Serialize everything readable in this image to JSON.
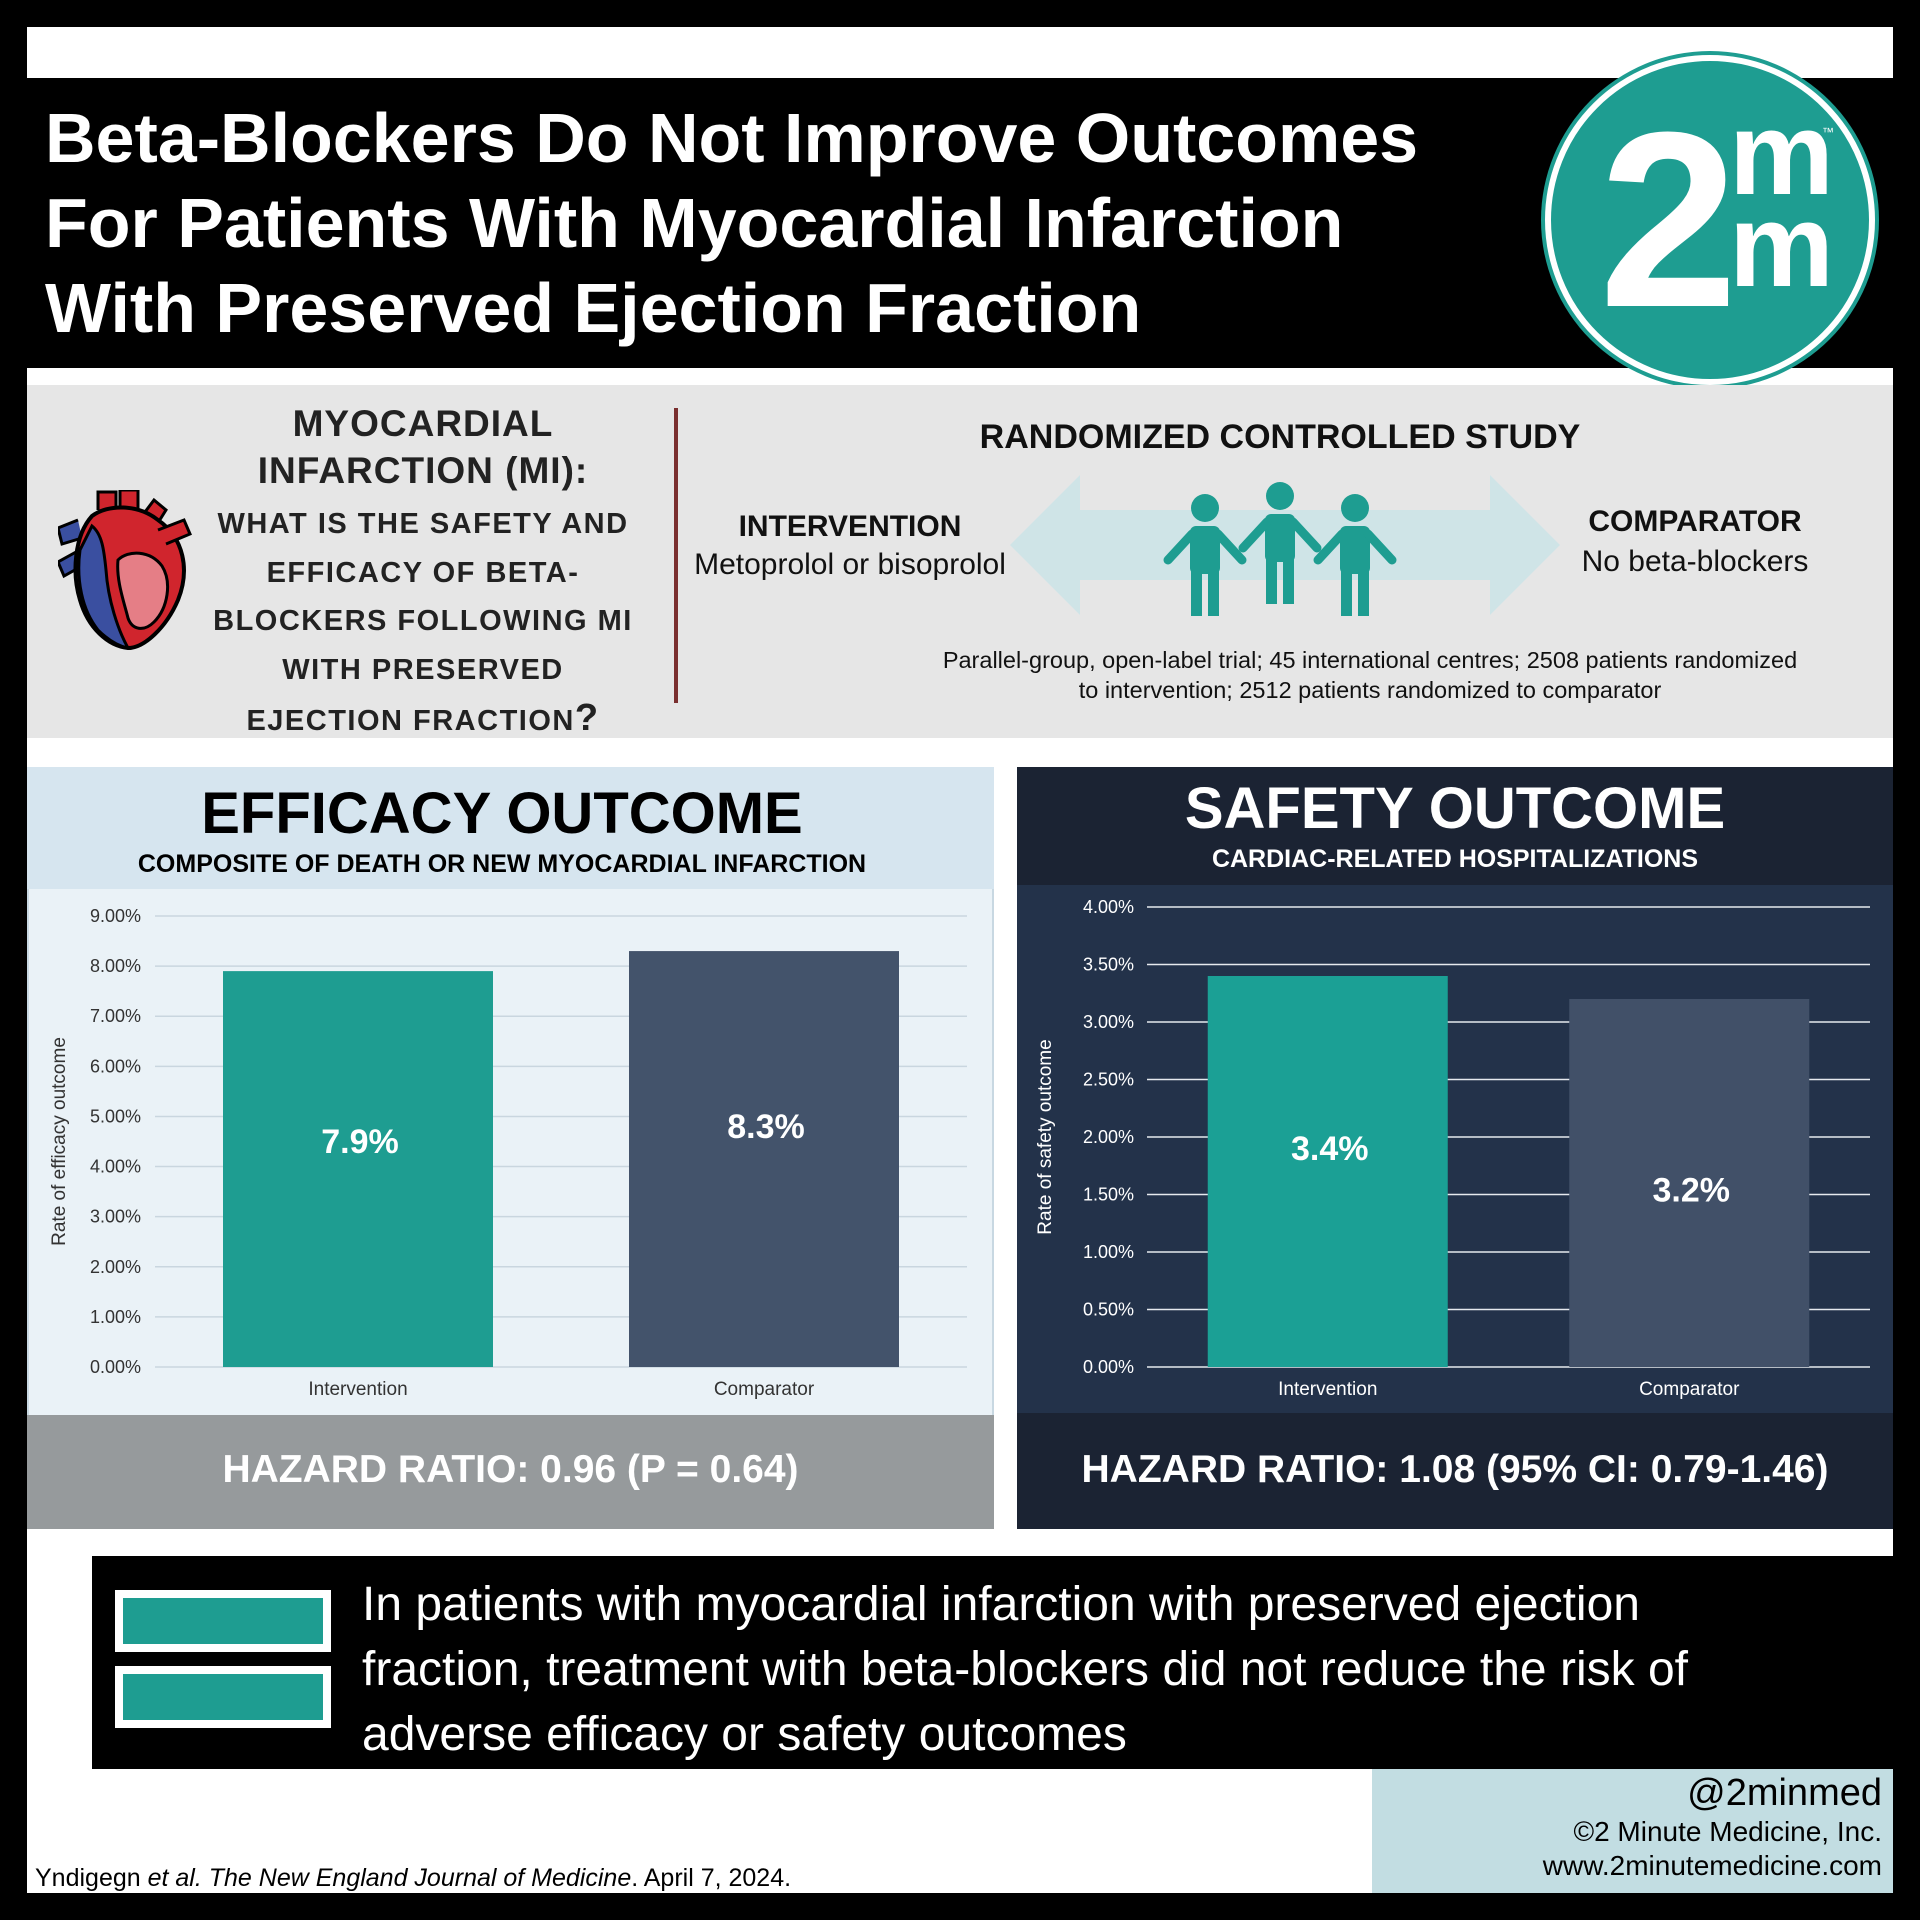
{
  "title_lines": [
    "Beta-Blockers Do Not Improve Outcomes",
    "For Patients With Myocardial Infarction",
    "With Preserved Ejection Fraction"
  ],
  "logo": {
    "digit": "2",
    "letter_top": "m",
    "letter_bottom": "m",
    "tm": "™"
  },
  "question": {
    "head": [
      "MYOCARDIAL",
      "INFARCTION (MI):"
    ],
    "body": [
      "WHAT IS THE SAFETY AND",
      "EFFICACY OF BETA-",
      "BLOCKERS FOLLOWING MI",
      "WITH PRESERVED",
      "EJECTION FRACTION",
      "?"
    ]
  },
  "study": {
    "title": "RANDOMIZED CONTROLLED STUDY",
    "intervention_label": "INTERVENTION",
    "intervention_desc": "Metoprolol or bisoprolol",
    "comparator_label": "COMPARATOR",
    "comparator_desc": "No beta-blockers",
    "description_lines": [
      "Parallel-group, open-label trial; 45 international centres; 2508 patients randomized",
      "to intervention; 2512 patients randomized to comparator"
    ]
  },
  "efficacy": {
    "title": "EFFICACY OUTCOME",
    "subtitle": "COMPOSITE OF DEATH OR NEW MYOCARDIAL INFARCTION",
    "hazard_ratio": "HAZARD RATIO: 0.96 (P = 0.64)"
  },
  "safety": {
    "title": "SAFETY OUTCOME",
    "subtitle": "CARDIAC-RELATED HOSPITALIZATIONS",
    "hazard_ratio": "HAZARD RATIO: 1.08 (95% CI: 0.79-1.46)"
  },
  "chart_data": [
    {
      "type": "bar",
      "categories": [
        "Intervention",
        "Comparator"
      ],
      "values": [
        7.9,
        8.3
      ],
      "data_labels": [
        "7.9%",
        "8.3%"
      ],
      "ylabel": "Rate of efficacy outcome",
      "ylim": [
        0,
        9
      ],
      "yticks": [
        "0.00%",
        "1.00%",
        "2.00%",
        "3.00%",
        "4.00%",
        "5.00%",
        "6.00%",
        "7.00%",
        "8.00%",
        "9.00%"
      ],
      "colors": [
        "#1e9d91",
        "#43536b"
      ],
      "grid": true
    },
    {
      "type": "bar",
      "categories": [
        "Intervention",
        "Comparator"
      ],
      "values": [
        3.4,
        3.2
      ],
      "data_labels": [
        "3.4%",
        "3.2%"
      ],
      "ylabel": "Rate of safety outcome",
      "ylim": [
        0,
        4
      ],
      "yticks": [
        "0.00%",
        "0.50%",
        "1.00%",
        "1.50%",
        "2.00%",
        "2.50%",
        "3.00%",
        "3.50%",
        "4.00%"
      ],
      "colors": [
        "#1ba095",
        "#415068"
      ],
      "grid": true
    }
  ],
  "conclusion_lines": [
    "In patients with myocardial infarction with preserved ejection",
    "fraction, treatment with beta-blockers did not reduce the risk of",
    "adverse efficacy or safety outcomes"
  ],
  "citation": {
    "authors": "Yndigegn ",
    "etal": "et al.",
    "journal": " The New England Journal of Medicine",
    "date": ". April 7, 2024."
  },
  "credits": {
    "handle": "@2minmed",
    "copyright": "©2 Minute Medicine, Inc.",
    "website": "www.2minutemedicine.com"
  },
  "colors": {
    "teal": "#1e9d91",
    "slate": "#43536b",
    "navy": "#23324a",
    "black": "#000000"
  }
}
